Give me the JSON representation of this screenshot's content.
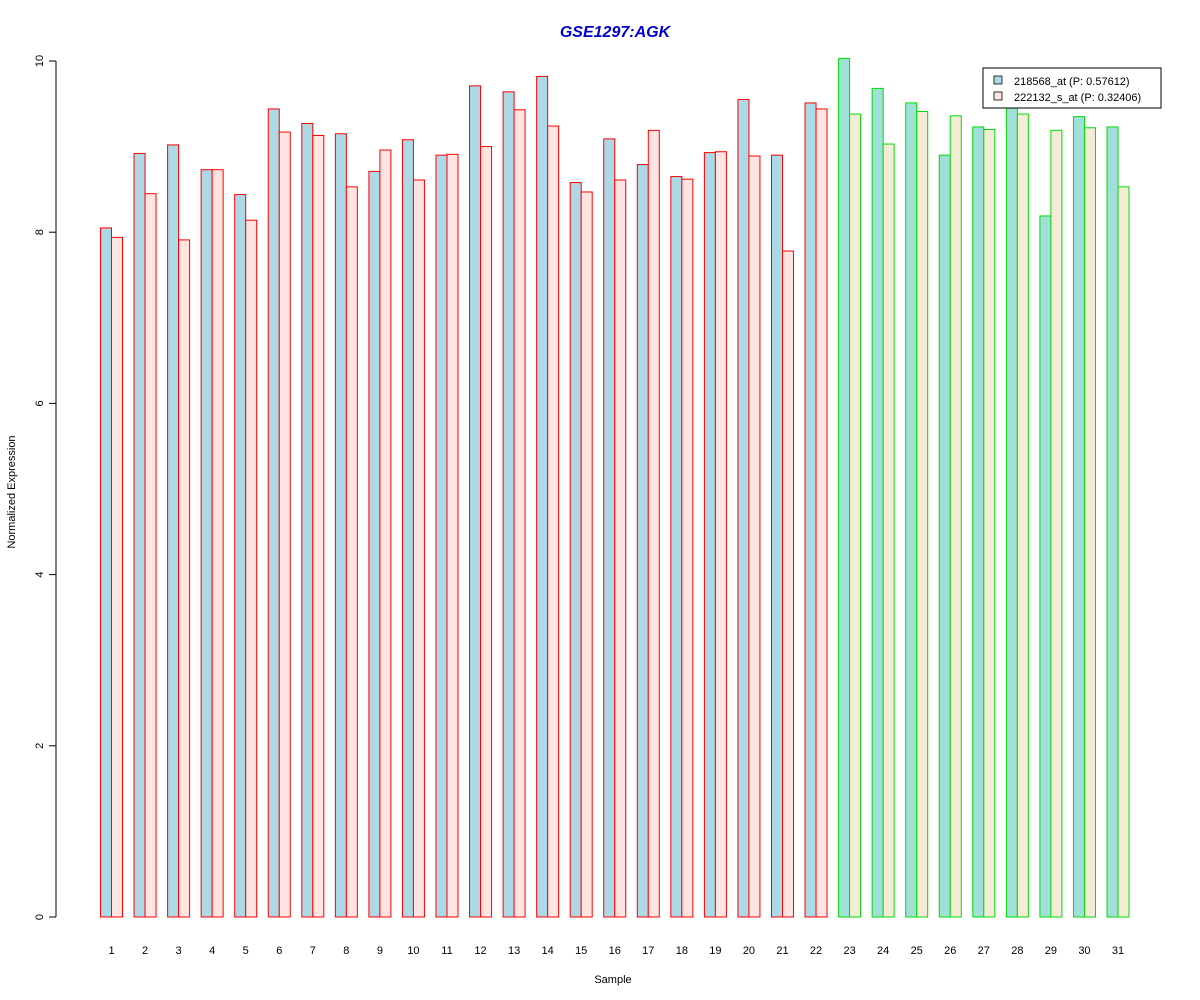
{
  "chart_data": {
    "type": "bar",
    "title": "GSE1297:AGK",
    "xlabel": "Sample",
    "ylabel": "Normalized Expression",
    "ylim": [
      0,
      10
    ],
    "yticks": [
      "0",
      "2",
      "4",
      "6",
      "8",
      "10"
    ],
    "categories": [
      "1",
      "2",
      "3",
      "4",
      "5",
      "6",
      "7",
      "8",
      "9",
      "10",
      "11",
      "12",
      "13",
      "14",
      "15",
      "16",
      "17",
      "18",
      "19",
      "20",
      "21",
      "22",
      "23",
      "24",
      "25",
      "26",
      "27",
      "28",
      "29",
      "30",
      "31"
    ],
    "groups": [
      {
        "samples": 22,
        "border_color": "#ff0000"
      },
      {
        "samples": 9,
        "border_color": "#00dd00"
      }
    ],
    "series": [
      {
        "name": "218568_at (P: 0.57612)",
        "fill_colors": [
          "#add8e6",
          "#a0e0d8"
        ],
        "values": [
          8.05,
          8.92,
          9.02,
          8.73,
          8.44,
          9.44,
          9.27,
          9.15,
          8.71,
          9.08,
          8.9,
          9.71,
          9.64,
          9.82,
          8.58,
          9.09,
          8.79,
          8.65,
          8.93,
          9.55,
          8.9,
          9.51,
          10.03,
          9.68,
          9.51,
          8.9,
          9.23,
          9.45,
          8.19,
          9.35,
          9.23
        ]
      },
      {
        "name": "222132_s_at (P: 0.32406)",
        "fill_colors": [
          "#ffe4e1",
          "#f5ecd8"
        ],
        "values": [
          7.94,
          8.45,
          7.91,
          8.73,
          8.14,
          9.17,
          9.13,
          8.53,
          8.96,
          8.61,
          8.91,
          9.0,
          9.43,
          9.24,
          8.47,
          8.61,
          9.19,
          8.62,
          8.94,
          8.89,
          7.78,
          9.44,
          9.38,
          9.03,
          9.41,
          9.36,
          9.2,
          9.38,
          9.19,
          9.22,
          8.53
        ]
      }
    ],
    "legend_position": "top-right",
    "title_color": "#0000cc"
  }
}
